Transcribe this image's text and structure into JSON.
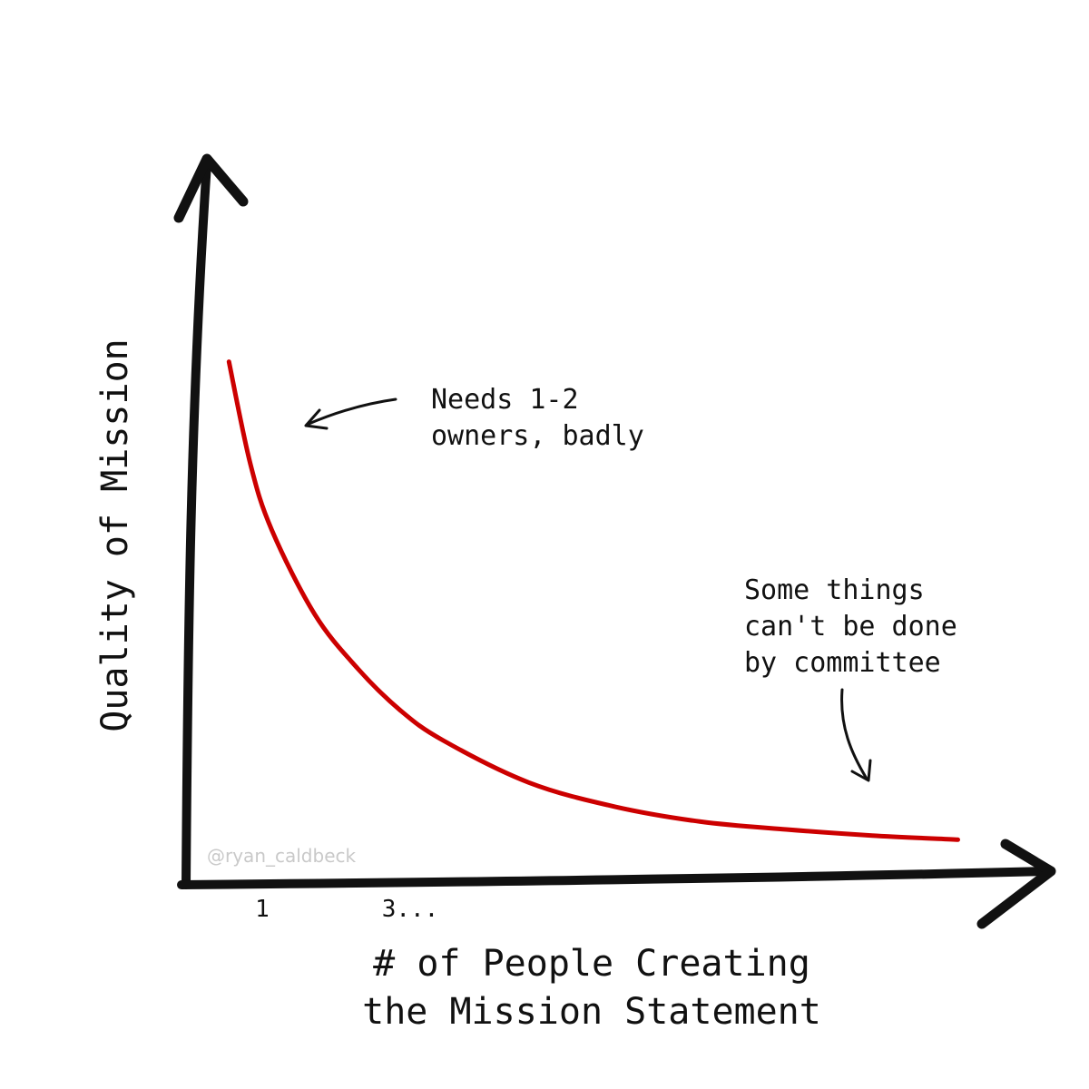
{
  "chart_data": {
    "type": "line",
    "xlabel_lines": [
      "# of People Creating",
      "the Mission Statement"
    ],
    "ylabel": "Quality of Mission",
    "x_tick_labels": [
      "1",
      "3..."
    ],
    "y_tick_labels": [],
    "grid": false,
    "x": [
      1,
      1.5,
      2,
      3,
      4,
      5,
      6,
      8,
      10,
      12,
      14,
      16,
      18
    ],
    "values": [
      8.7,
      7.0,
      5.9,
      4.5,
      3.6,
      2.9,
      2.4,
      1.7,
      1.3,
      1.05,
      0.92,
      0.82,
      0.75
    ],
    "xlim": [
      0,
      20
    ],
    "ylim": [
      0,
      12
    ],
    "series_color": "#cc0000",
    "annotations": [
      {
        "lines": [
          "Needs 1-2",
          "owners, badly"
        ]
      },
      {
        "lines": [
          "Some things",
          "can't be done",
          "by committee"
        ]
      }
    ],
    "credit": "@ryan_caldbeck"
  }
}
